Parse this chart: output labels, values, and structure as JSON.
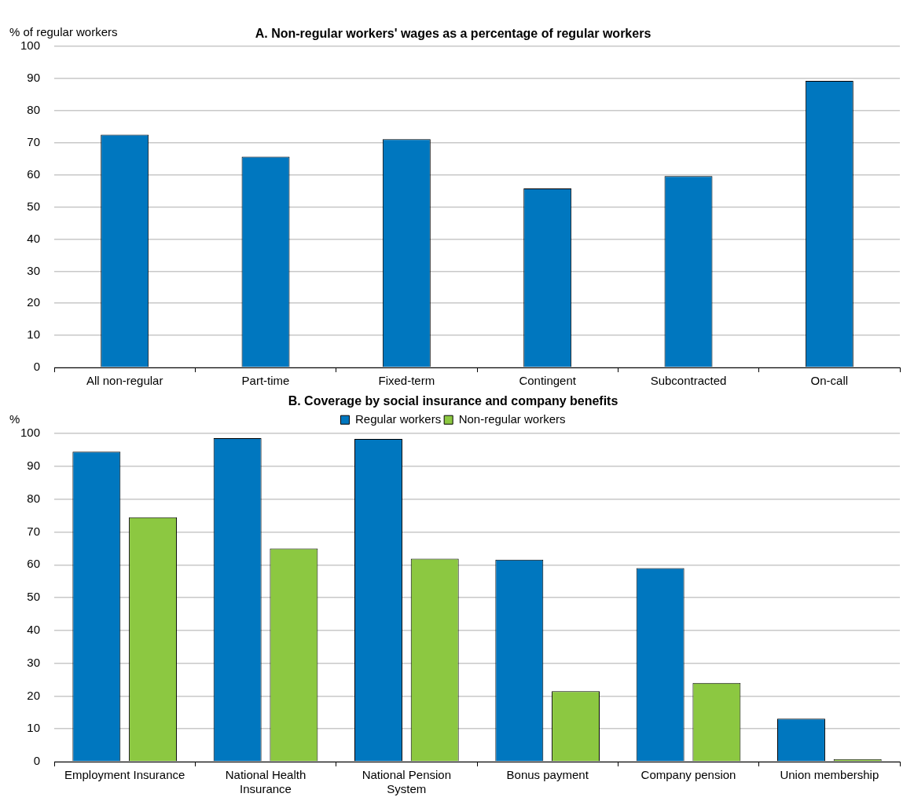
{
  "chart_data": [
    {
      "type": "bar",
      "title": "A. Non-regular workers' wages as a percentage of regular workers",
      "ylabel": "% of regular workers",
      "categories": [
        "All non-regular",
        "Part-time",
        "Fixed-term",
        "Contingent",
        "Subcontracted",
        "On-call"
      ],
      "series": [
        {
          "color": "#0077bf",
          "values": [
            72.5,
            65.7,
            71.1,
            55.8,
            59.6,
            89.3
          ]
        }
      ],
      "ylim": [
        0,
        100
      ],
      "yticks": [
        0,
        10,
        20,
        30,
        40,
        50,
        60,
        70,
        80,
        90,
        100
      ],
      "grid": "y",
      "legend": false
    },
    {
      "type": "bar",
      "title": "B. Coverage by social insurance and company benefits",
      "ylabel": "%",
      "categories": [
        "Employment Insurance",
        "National Health Insurance",
        "National Pension System",
        "Bonus payment",
        "Company pension",
        "Union membership"
      ],
      "series": [
        {
          "name": "Regular workers",
          "color": "#0077bf",
          "values": [
            94.5,
            98.6,
            98.4,
            61.6,
            59,
            13.1
          ]
        },
        {
          "name": "Non-regular workers",
          "color": "#8cc841",
          "values": [
            74.5,
            65,
            61.9,
            21.5,
            24,
            0.8
          ]
        }
      ],
      "ylim": [
        0,
        100
      ],
      "yticks": [
        0,
        10,
        20,
        30,
        40,
        50,
        60,
        70,
        80,
        90,
        100
      ],
      "grid": "y",
      "legend": "top"
    }
  ]
}
